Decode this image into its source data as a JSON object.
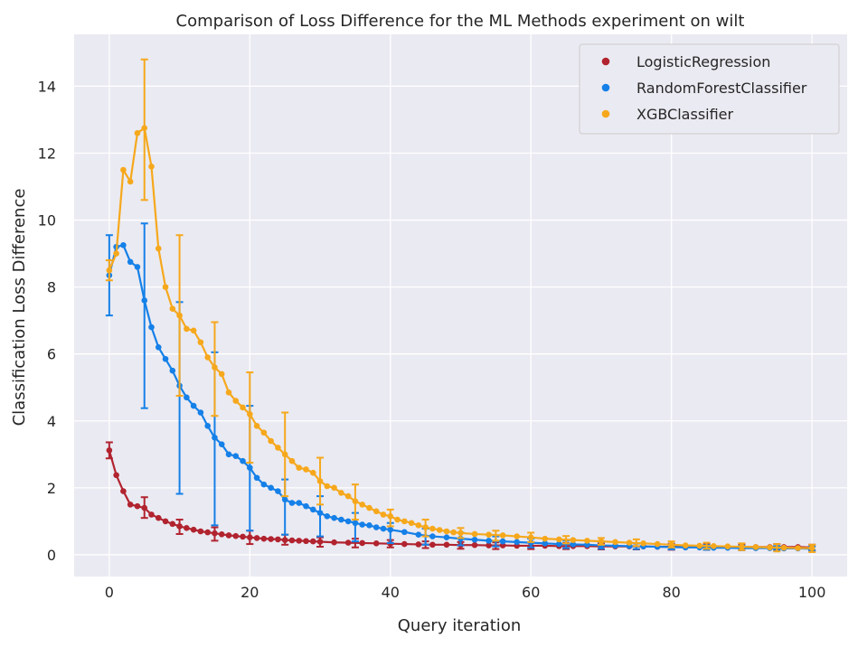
{
  "chart_data": {
    "type": "line",
    "title": "Comparison of Loss Difference for the ML Methods experiment on wilt",
    "xlabel": "Query iteration",
    "ylabel": "Classification Loss Difference",
    "xlim": [
      -5,
      105
    ],
    "ylim": [
      -0.65,
      15.55
    ],
    "xticks": [
      0,
      20,
      40,
      60,
      80,
      100
    ],
    "yticks": [
      0,
      2,
      4,
      6,
      8,
      10,
      12,
      14
    ],
    "grid": true,
    "legend_position": "top-right",
    "background": "#eaeaf2",
    "series": [
      {
        "name": "LogisticRegression",
        "color": "#b1232f",
        "points": [
          [
            0,
            3.12
          ],
          [
            1,
            2.38
          ],
          [
            2,
            1.9
          ],
          [
            3,
            1.5
          ],
          [
            4,
            1.45
          ],
          [
            5,
            1.4
          ],
          [
            6,
            1.2
          ],
          [
            7,
            1.1
          ],
          [
            8,
            1.0
          ],
          [
            9,
            0.92
          ],
          [
            10,
            0.85
          ],
          [
            11,
            0.8
          ],
          [
            12,
            0.75
          ],
          [
            13,
            0.7
          ],
          [
            14,
            0.67
          ],
          [
            15,
            0.64
          ],
          [
            16,
            0.61
          ],
          [
            17,
            0.58
          ],
          [
            18,
            0.56
          ],
          [
            19,
            0.54
          ],
          [
            20,
            0.52
          ],
          [
            21,
            0.5
          ],
          [
            22,
            0.48
          ],
          [
            23,
            0.47
          ],
          [
            24,
            0.46
          ],
          [
            25,
            0.44
          ],
          [
            26,
            0.43
          ],
          [
            27,
            0.42
          ],
          [
            28,
            0.41
          ],
          [
            29,
            0.4
          ],
          [
            30,
            0.39
          ],
          [
            32,
            0.37
          ],
          [
            34,
            0.36
          ],
          [
            36,
            0.35
          ],
          [
            38,
            0.34
          ],
          [
            40,
            0.33
          ],
          [
            42,
            0.32
          ],
          [
            44,
            0.31
          ],
          [
            46,
            0.3
          ],
          [
            48,
            0.3
          ],
          [
            50,
            0.29
          ],
          [
            52,
            0.29
          ],
          [
            54,
            0.28
          ],
          [
            56,
            0.28
          ],
          [
            58,
            0.27
          ],
          [
            60,
            0.27
          ],
          [
            62,
            0.27
          ],
          [
            64,
            0.26
          ],
          [
            66,
            0.26
          ],
          [
            68,
            0.26
          ],
          [
            70,
            0.25
          ],
          [
            72,
            0.25
          ],
          [
            74,
            0.25
          ],
          [
            76,
            0.25
          ],
          [
            78,
            0.24
          ],
          [
            80,
            0.24
          ],
          [
            82,
            0.24
          ],
          [
            84,
            0.24
          ],
          [
            86,
            0.24
          ],
          [
            88,
            0.23
          ],
          [
            90,
            0.23
          ],
          [
            92,
            0.23
          ],
          [
            94,
            0.23
          ],
          [
            96,
            0.23
          ],
          [
            98,
            0.23
          ],
          [
            100,
            0.22
          ]
        ],
        "errorbars": [
          [
            0,
            2.88,
            3.36
          ],
          [
            5,
            1.1,
            1.72
          ],
          [
            10,
            0.62,
            1.05
          ],
          [
            15,
            0.42,
            0.82
          ],
          [
            20,
            0.32,
            0.72
          ],
          [
            25,
            0.3,
            0.6
          ],
          [
            30,
            0.24,
            0.52
          ],
          [
            35,
            0.22,
            0.48
          ],
          [
            40,
            0.22,
            0.44
          ],
          [
            45,
            0.2,
            0.4
          ],
          [
            50,
            0.18,
            0.38
          ],
          [
            55,
            0.17,
            0.37
          ],
          [
            60,
            0.17,
            0.36
          ],
          [
            65,
            0.17,
            0.35
          ],
          [
            70,
            0.16,
            0.34
          ],
          [
            75,
            0.16,
            0.34
          ],
          [
            80,
            0.15,
            0.33
          ],
          [
            85,
            0.15,
            0.33
          ],
          [
            90,
            0.14,
            0.32
          ],
          [
            95,
            0.14,
            0.32
          ],
          [
            100,
            0.13,
            0.3
          ]
        ]
      },
      {
        "name": "RandomForestClassifier",
        "color": "#1580e8",
        "points": [
          [
            0,
            8.35
          ],
          [
            1,
            9.2
          ],
          [
            2,
            9.25
          ],
          [
            3,
            8.75
          ],
          [
            4,
            8.6
          ],
          [
            5,
            7.6
          ],
          [
            6,
            6.8
          ],
          [
            7,
            6.2
          ],
          [
            8,
            5.85
          ],
          [
            9,
            5.5
          ],
          [
            10,
            5.05
          ],
          [
            11,
            4.7
          ],
          [
            12,
            4.45
          ],
          [
            13,
            4.25
          ],
          [
            14,
            3.85
          ],
          [
            15,
            3.5
          ],
          [
            16,
            3.3
          ],
          [
            17,
            3.0
          ],
          [
            18,
            2.95
          ],
          [
            19,
            2.8
          ],
          [
            20,
            2.6
          ],
          [
            21,
            2.3
          ],
          [
            22,
            2.1
          ],
          [
            23,
            2.0
          ],
          [
            24,
            1.9
          ],
          [
            25,
            1.65
          ],
          [
            26,
            1.55
          ],
          [
            27,
            1.55
          ],
          [
            28,
            1.45
          ],
          [
            29,
            1.35
          ],
          [
            30,
            1.25
          ],
          [
            31,
            1.15
          ],
          [
            32,
            1.1
          ],
          [
            33,
            1.05
          ],
          [
            34,
            1.0
          ],
          [
            35,
            0.95
          ],
          [
            36,
            0.9
          ],
          [
            37,
            0.88
          ],
          [
            38,
            0.82
          ],
          [
            39,
            0.78
          ],
          [
            40,
            0.75
          ],
          [
            42,
            0.68
          ],
          [
            44,
            0.6
          ],
          [
            46,
            0.55
          ],
          [
            48,
            0.52
          ],
          [
            50,
            0.48
          ],
          [
            52,
            0.45
          ],
          [
            54,
            0.42
          ],
          [
            56,
            0.4
          ],
          [
            58,
            0.38
          ],
          [
            60,
            0.36
          ],
          [
            62,
            0.34
          ],
          [
            64,
            0.32
          ],
          [
            66,
            0.31
          ],
          [
            68,
            0.3
          ],
          [
            70,
            0.28
          ],
          [
            72,
            0.27
          ],
          [
            74,
            0.26
          ],
          [
            76,
            0.25
          ],
          [
            78,
            0.24
          ],
          [
            80,
            0.23
          ],
          [
            82,
            0.22
          ],
          [
            84,
            0.22
          ],
          [
            86,
            0.21
          ],
          [
            88,
            0.21
          ],
          [
            90,
            0.2
          ],
          [
            92,
            0.2
          ],
          [
            94,
            0.2
          ],
          [
            96,
            0.19
          ],
          [
            98,
            0.19
          ],
          [
            100,
            0.18
          ]
        ],
        "errorbars": [
          [
            0,
            7.15,
            9.55
          ],
          [
            5,
            4.38,
            9.9
          ],
          [
            10,
            1.82,
            7.55
          ],
          [
            15,
            0.88,
            6.05
          ],
          [
            20,
            0.72,
            4.45
          ],
          [
            25,
            0.6,
            2.25
          ],
          [
            30,
            0.55,
            1.75
          ],
          [
            35,
            0.4,
            1.25
          ],
          [
            40,
            0.35,
            0.95
          ],
          [
            45,
            0.3,
            0.78
          ],
          [
            50,
            0.28,
            0.66
          ],
          [
            55,
            0.25,
            0.55
          ],
          [
            60,
            0.22,
            0.48
          ],
          [
            65,
            0.2,
            0.42
          ],
          [
            70,
            0.18,
            0.38
          ],
          [
            75,
            0.17,
            0.34
          ],
          [
            80,
            0.16,
            0.31
          ],
          [
            85,
            0.15,
            0.29
          ],
          [
            90,
            0.14,
            0.27
          ],
          [
            95,
            0.13,
            0.26
          ],
          [
            100,
            0.12,
            0.25
          ]
        ]
      },
      {
        "name": "XGBClassifier",
        "color": "#f6a81c",
        "points": [
          [
            0,
            8.5
          ],
          [
            1,
            9.0
          ],
          [
            2,
            11.5
          ],
          [
            3,
            11.15
          ],
          [
            4,
            12.6
          ],
          [
            5,
            12.75
          ],
          [
            6,
            11.6
          ],
          [
            7,
            9.15
          ],
          [
            8,
            8.0
          ],
          [
            9,
            7.35
          ],
          [
            10,
            7.15
          ],
          [
            11,
            6.75
          ],
          [
            12,
            6.7
          ],
          [
            13,
            6.35
          ],
          [
            14,
            5.9
          ],
          [
            15,
            5.6
          ],
          [
            16,
            5.4
          ],
          [
            17,
            4.85
          ],
          [
            18,
            4.6
          ],
          [
            19,
            4.4
          ],
          [
            20,
            4.2
          ],
          [
            21,
            3.85
          ],
          [
            22,
            3.65
          ],
          [
            23,
            3.4
          ],
          [
            24,
            3.2
          ],
          [
            25,
            3.0
          ],
          [
            26,
            2.8
          ],
          [
            27,
            2.6
          ],
          [
            28,
            2.55
          ],
          [
            29,
            2.45
          ],
          [
            30,
            2.2
          ],
          [
            31,
            2.05
          ],
          [
            32,
            2.0
          ],
          [
            33,
            1.85
          ],
          [
            34,
            1.75
          ],
          [
            35,
            1.6
          ],
          [
            36,
            1.5
          ],
          [
            37,
            1.4
          ],
          [
            38,
            1.3
          ],
          [
            39,
            1.2
          ],
          [
            40,
            1.15
          ],
          [
            41,
            1.05
          ],
          [
            42,
            1.0
          ],
          [
            43,
            0.95
          ],
          [
            44,
            0.88
          ],
          [
            45,
            0.82
          ],
          [
            46,
            0.78
          ],
          [
            47,
            0.74
          ],
          [
            48,
            0.7
          ],
          [
            49,
            0.67
          ],
          [
            50,
            0.65
          ],
          [
            52,
            0.62
          ],
          [
            54,
            0.6
          ],
          [
            56,
            0.58
          ],
          [
            58,
            0.55
          ],
          [
            60,
            0.52
          ],
          [
            62,
            0.48
          ],
          [
            64,
            0.46
          ],
          [
            66,
            0.44
          ],
          [
            68,
            0.42
          ],
          [
            70,
            0.4
          ],
          [
            72,
            0.38
          ],
          [
            74,
            0.36
          ],
          [
            76,
            0.34
          ],
          [
            78,
            0.32
          ],
          [
            80,
            0.3
          ],
          [
            82,
            0.28
          ],
          [
            84,
            0.27
          ],
          [
            86,
            0.26
          ],
          [
            88,
            0.25
          ],
          [
            90,
            0.24
          ],
          [
            92,
            0.23
          ],
          [
            94,
            0.22
          ],
          [
            96,
            0.21
          ],
          [
            98,
            0.2
          ],
          [
            100,
            0.2
          ]
        ],
        "errorbars": [
          [
            0,
            8.2,
            8.8
          ],
          [
            5,
            10.6,
            14.8
          ],
          [
            10,
            4.75,
            9.55
          ],
          [
            15,
            4.15,
            6.95
          ],
          [
            20,
            2.75,
            5.45
          ],
          [
            25,
            1.75,
            4.25
          ],
          [
            30,
            1.5,
            2.9
          ],
          [
            35,
            1.05,
            2.1
          ],
          [
            40,
            0.85,
            1.35
          ],
          [
            45,
            0.55,
            1.05
          ],
          [
            50,
            0.5,
            0.8
          ],
          [
            55,
            0.42,
            0.72
          ],
          [
            60,
            0.38,
            0.66
          ],
          [
            65,
            0.34,
            0.56
          ],
          [
            70,
            0.3,
            0.5
          ],
          [
            75,
            0.26,
            0.46
          ],
          [
            80,
            0.22,
            0.4
          ],
          [
            85,
            0.18,
            0.36
          ],
          [
            90,
            0.14,
            0.34
          ],
          [
            95,
            0.1,
            0.32
          ],
          [
            100,
            0.08,
            0.3
          ]
        ]
      }
    ]
  }
}
